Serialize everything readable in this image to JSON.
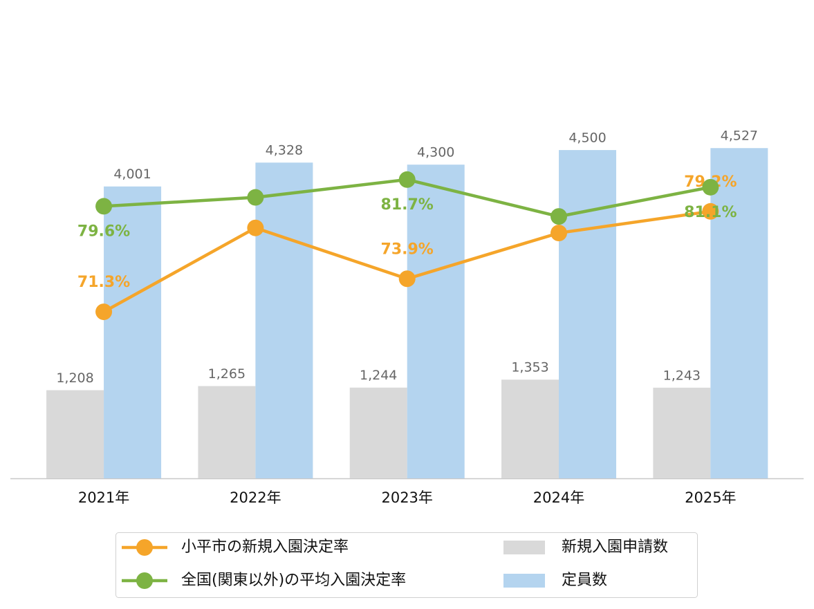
{
  "chart_data": {
    "type": "bar",
    "categories": [
      "2021年",
      "2022年",
      "2023年",
      "2024年",
      "2025年"
    ],
    "ylim": [
      0,
      6500
    ],
    "y2lim": [
      58.2,
      95.5
    ],
    "series": [
      {
        "name": "小平市の新規入園決定率",
        "type": "line",
        "axis": "y2",
        "color": "#f5a52a",
        "values": [
          71.3,
          77.9,
          73.9,
          77.5,
          79.2
        ],
        "value_labels": [
          "71.3%",
          null,
          "73.9%",
          null,
          "79.2%"
        ],
        "label_position": "above"
      },
      {
        "name": "全国(関東以外)の平均入園決定率",
        "type": "line",
        "axis": "y2",
        "color": "#7db343",
        "values": [
          79.6,
          80.3,
          81.7,
          78.8,
          81.1
        ],
        "value_labels": [
          "79.6%",
          null,
          "81.7%",
          null,
          "81.1%"
        ],
        "label_position": "below"
      },
      {
        "name": "新規入園申請数",
        "type": "bar",
        "color": "#d9d9d9",
        "values": [
          1208,
          1265,
          1244,
          1353,
          1243
        ],
        "value_labels": [
          "1,208",
          "1,265",
          "1,244",
          "1,353",
          "1,243"
        ]
      },
      {
        "name": "定員数",
        "type": "bar",
        "color": "#b4d4ef",
        "values": [
          4001,
          4328,
          4300,
          4500,
          4527
        ],
        "value_labels": [
          "4,001",
          "4,328",
          "4,300",
          "4,500",
          "4,527"
        ]
      }
    ]
  }
}
